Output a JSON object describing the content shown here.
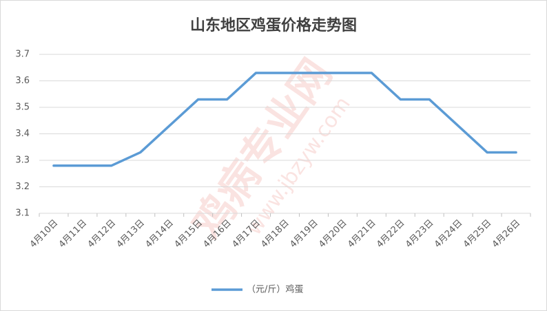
{
  "chart_data": {
    "type": "line",
    "title": "山东地区鸡蛋价格走势图",
    "categories": [
      "4月10日",
      "4月11日",
      "4月12日",
      "4月13日",
      "4月14日",
      "4月15日",
      "4月16日",
      "4月17日",
      "4月18日",
      "4月19日",
      "4月20日",
      "4月21日",
      "4月22日",
      "4月23日",
      "4月24日",
      "4月25日",
      "4月26日"
    ],
    "series": [
      {
        "name": "（元/斤）鸡蛋",
        "color": "#5b9bd5",
        "values": [
          3.28,
          3.28,
          3.28,
          3.33,
          3.43,
          3.53,
          3.53,
          3.63,
          3.63,
          3.63,
          3.63,
          3.63,
          3.53,
          3.53,
          3.43,
          3.33,
          3.33
        ]
      }
    ],
    "ylim": [
      3.1,
      3.7
    ],
    "yticks": [
      3.1,
      3.2,
      3.3,
      3.4,
      3.5,
      3.6,
      3.7
    ],
    "grid": true,
    "legend": "bottom",
    "watermark": [
      "鸡病专业网",
      "www.jbzyw.com"
    ]
  }
}
